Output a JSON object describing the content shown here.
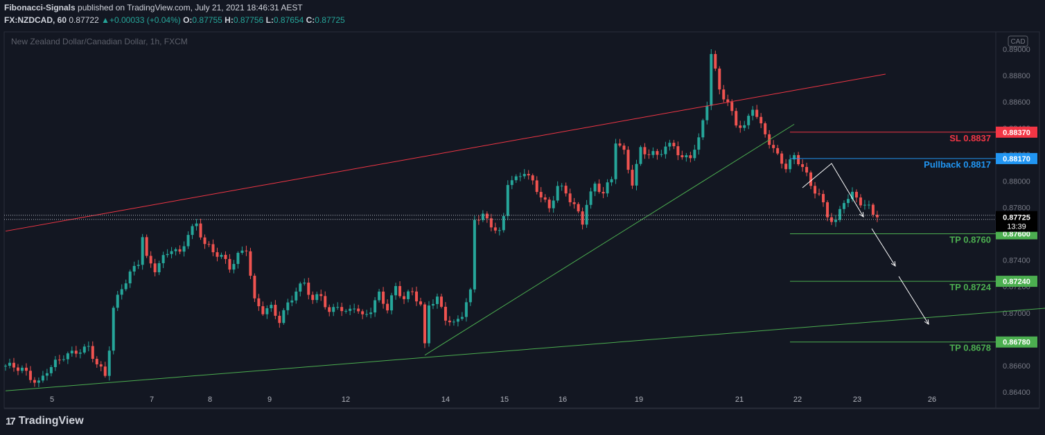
{
  "header": {
    "author": "Fibonacci-Signals",
    "published": "published on TradingView.com, July 21, 2021 18:46:31 AEST",
    "symbol": "FX:NZDCAD, 60",
    "last": "0.87722",
    "change_icon": "triangle-up-icon",
    "change": "+0.00033 (+0.04%)",
    "o_label": "O:",
    "o": "0.87755",
    "h_label": "H:",
    "h": "0.87756",
    "l_label": "L:",
    "l": "0.87654",
    "c_label": "C:",
    "c": "0.87725"
  },
  "chart_data": {
    "type": "candlestick",
    "instrument": "New Zealand Dollar/Canadian Dollar, 1h, FXCM",
    "currency_badge": "CAD",
    "y_ticks": [
      "0.89000",
      "0.88800",
      "0.88600",
      "0.88400",
      "0.88200",
      "0.88000",
      "0.87800",
      "0.87600",
      "0.87400",
      "0.87200",
      "0.87000",
      "0.86800",
      "0.86600",
      "0.86400"
    ],
    "x_ticks": [
      "5",
      "7",
      "8",
      "9",
      "12",
      "14",
      "15",
      "16",
      "19",
      "21",
      "22",
      "23",
      "26"
    ],
    "ylim": [
      0.8628,
      0.8913
    ],
    "current_price": "0.87725",
    "countdown": "13:39",
    "price_path": [
      [
        0,
        0.866
      ],
      [
        4,
        0.8656
      ],
      [
        6,
        0.8651
      ],
      [
        8,
        0.8648
      ],
      [
        10,
        0.8658
      ],
      [
        12,
        0.8662
      ],
      [
        14,
        0.8666
      ],
      [
        16,
        0.8668
      ],
      [
        18,
        0.8672
      ],
      [
        20,
        0.8675
      ],
      [
        22,
        0.8663
      ],
      [
        24,
        0.8652
      ],
      [
        25,
        0.8673
      ],
      [
        26,
        0.8702
      ],
      [
        28,
        0.8718
      ],
      [
        30,
        0.873
      ],
      [
        32,
        0.874
      ],
      [
        33,
        0.876
      ],
      [
        34,
        0.8742
      ],
      [
        36,
        0.8733
      ],
      [
        38,
        0.874
      ],
      [
        40,
        0.8748
      ],
      [
        42,
        0.8745
      ],
      [
        44,
        0.8762
      ],
      [
        46,
        0.8768
      ],
      [
        48,
        0.8752
      ],
      [
        50,
        0.8745
      ],
      [
        52,
        0.8742
      ],
      [
        54,
        0.8735
      ],
      [
        56,
        0.8745
      ],
      [
        58,
        0.875
      ],
      [
        60,
        0.8708
      ],
      [
        62,
        0.87
      ],
      [
        64,
        0.8703
      ],
      [
        66,
        0.8695
      ],
      [
        68,
        0.8708
      ],
      [
        70,
        0.8718
      ],
      [
        72,
        0.8722
      ],
      [
        74,
        0.8708
      ],
      [
        76,
        0.8713
      ],
      [
        78,
        0.87
      ],
      [
        80,
        0.8708
      ],
      [
        82,
        0.87
      ],
      [
        84,
        0.8705
      ],
      [
        86,
        0.8695
      ],
      [
        88,
        0.8702
      ],
      [
        90,
        0.8715
      ],
      [
        92,
        0.8705
      ],
      [
        94,
        0.872
      ],
      [
        96,
        0.871
      ],
      [
        98,
        0.8715
      ],
      [
        100,
        0.8705
      ],
      [
        101,
        0.8675
      ],
      [
        102,
        0.8708
      ],
      [
        104,
        0.8712
      ],
      [
        106,
        0.8697
      ],
      [
        108,
        0.869
      ],
      [
        110,
        0.8698
      ],
      [
        112,
        0.8715
      ],
      [
        113,
        0.8772
      ],
      [
        115,
        0.8775
      ],
      [
        117,
        0.8768
      ],
      [
        119,
        0.876
      ],
      [
        120,
        0.8772
      ],
      [
        121,
        0.8798
      ],
      [
        123,
        0.88
      ],
      [
        125,
        0.8808
      ],
      [
        127,
        0.88
      ],
      [
        129,
        0.879
      ],
      [
        131,
        0.8778
      ],
      [
        133,
        0.8795
      ],
      [
        135,
        0.879
      ],
      [
        137,
        0.8782
      ],
      [
        139,
        0.877
      ],
      [
        140,
        0.8785
      ],
      [
        142,
        0.8797
      ],
      [
        144,
        0.879
      ],
      [
        146,
        0.88
      ],
      [
        147,
        0.883
      ],
      [
        149,
        0.8822
      ],
      [
        151,
        0.88
      ],
      [
        153,
        0.8825
      ],
      [
        155,
        0.882
      ],
      [
        157,
        0.8818
      ],
      [
        159,
        0.8825
      ],
      [
        161,
        0.8828
      ],
      [
        163,
        0.8818
      ],
      [
        165,
        0.882
      ],
      [
        167,
        0.883
      ],
      [
        169,
        0.8858
      ],
      [
        170,
        0.8895
      ],
      [
        171,
        0.8882
      ],
      [
        172,
        0.887
      ],
      [
        174,
        0.886
      ],
      [
        176,
        0.8845
      ],
      [
        178,
        0.884
      ],
      [
        180,
        0.8855
      ],
      [
        182,
        0.884
      ],
      [
        184,
        0.883
      ],
      [
        186,
        0.882
      ],
      [
        188,
        0.8812
      ],
      [
        190,
        0.8818
      ],
      [
        192,
        0.881
      ],
      [
        194,
        0.8795
      ],
      [
        196,
        0.879
      ],
      [
        198,
        0.8775
      ],
      [
        200,
        0.877
      ],
      [
        202,
        0.8785
      ],
      [
        204,
        0.8788
      ],
      [
        206,
        0.8783
      ],
      [
        208,
        0.878
      ],
      [
        210,
        0.87725
      ]
    ],
    "levels": [
      {
        "name": "SL",
        "label": "SL 0.8837",
        "price": 0.8837,
        "badge": "0.88370",
        "color": "#f23645"
      },
      {
        "name": "Pullback",
        "label": "Pullback 0.8817",
        "price": 0.8817,
        "badge": "0.88170",
        "color": "#2196f3"
      },
      {
        "name": "TP1",
        "label": "TP 0.8760",
        "price": 0.876,
        "badge": "0.87600",
        "color": "#4caf50"
      },
      {
        "name": "TP2",
        "label": "TP 0.8724",
        "price": 0.8724,
        "badge": "0.87240",
        "color": "#4caf50"
      },
      {
        "name": "TP3",
        "label": "TP 0.8678",
        "price": 0.8678,
        "badge": "0.86780",
        "color": "#4caf50"
      }
    ],
    "trendlines": [
      {
        "name": "upper-channel",
        "color": "#f23645",
        "from": [
          0,
          0.8762
        ],
        "to": [
          212,
          0.8881
        ]
      },
      {
        "name": "lower-channel",
        "color": "#4caf50",
        "from": [
          0,
          0.8641
        ],
        "to": [
          252,
          0.8704
        ]
      },
      {
        "name": "support-line",
        "color": "#4caf50",
        "from": [
          101,
          0.8668
        ],
        "to": [
          190,
          0.8843
        ]
      }
    ],
    "grid": false,
    "legend": "none"
  },
  "footer": {
    "brand": "TradingView"
  }
}
